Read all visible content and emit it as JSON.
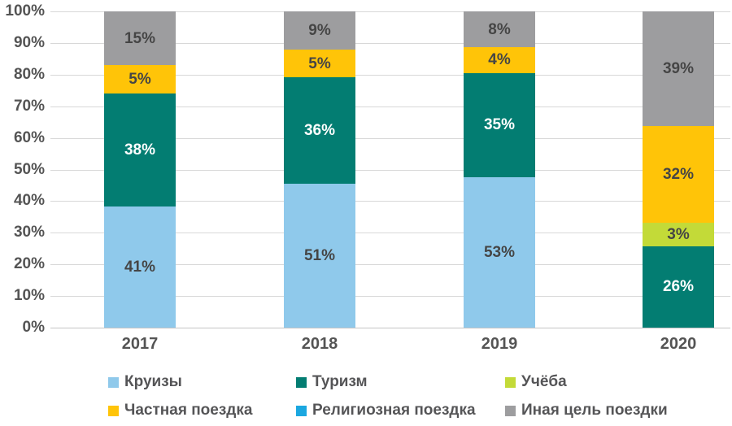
{
  "chart_data": {
    "type": "bar",
    "subtype": "stacked-100",
    "title": "",
    "xlabel": "",
    "ylabel": "",
    "ylim": [
      0,
      100
    ],
    "grid": true,
    "legend_position": "bottom",
    "y_ticks": [
      "0%",
      "10%",
      "20%",
      "30%",
      "40%",
      "50%",
      "60%",
      "70%",
      "80%",
      "90%",
      "100%"
    ],
    "categories": [
      "2017",
      "2018",
      "2019",
      "2020"
    ],
    "series": [
      {
        "name": "Круизы",
        "color": "#8FC9EB",
        "label_color": "#454545",
        "values": [
          41,
          51,
          53,
          0
        ]
      },
      {
        "name": "Туризм",
        "color": "#037D72",
        "label_color": "#FFFFFF",
        "values": [
          38,
          36,
          35,
          26
        ]
      },
      {
        "name": "Учёба",
        "color": "#C3DA38",
        "label_color": "#454545",
        "values": [
          0,
          0,
          0,
          3
        ]
      },
      {
        "name": "Частная поездка",
        "color": "#FFC408",
        "label_color": "#454545",
        "values": [
          5,
          5,
          4,
          32
        ]
      },
      {
        "name": "Религиозная поездка",
        "color": "#1BA7E0",
        "label_color": "#454545",
        "values": [
          0,
          0,
          0,
          0
        ]
      },
      {
        "name": "Иная цель поездки",
        "color": "#9D9D9F",
        "label_color": "#454545",
        "values": [
          15,
          9,
          8,
          39
        ]
      }
    ],
    "value_suffix": "%"
  },
  "colors": {
    "gridline": "#d8d8d8",
    "baseline": "#c4c4c4",
    "axis_text": "#545454",
    "legend_text": "#555557"
  }
}
